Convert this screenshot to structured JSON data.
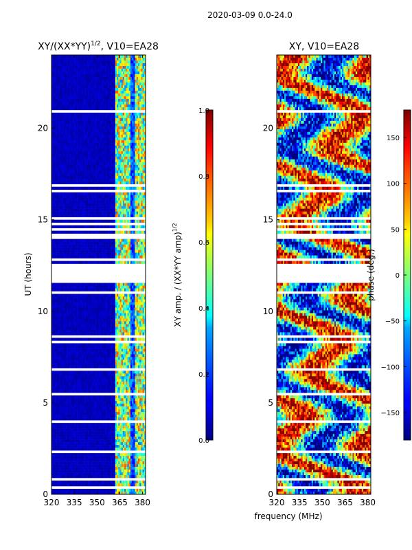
{
  "suptitle": "2020-03-09 0.0-24.0",
  "xlabel": "frequency (MHz)",
  "chart_data": [
    {
      "type": "heatmap",
      "title_main": "XY/(XX*YY)",
      "title_sup": "1/2",
      "title_tail": ", V10=EA28",
      "ylabel": "UT (hours)",
      "x_ticks": [
        "320",
        "335",
        "350",
        "365",
        "380"
      ],
      "x_tick_values": [
        320,
        335,
        350,
        365,
        380
      ],
      "xlim": [
        320,
        382
      ],
      "y_ticks": [
        "0",
        "5",
        "10",
        "15",
        "20"
      ],
      "y_tick_values": [
        0,
        5,
        10,
        15,
        20
      ],
      "ylim": [
        0,
        24
      ],
      "data_gaps_hours": [
        [
          11.5,
          12.6
        ],
        [
          13.9,
          14.3
        ]
      ],
      "colorbar": {
        "label_main": "XY amp. / (XX*YY amp)",
        "label_sup": "1/2",
        "ticks": [
          "0.0",
          "0.2",
          "0.4",
          "0.6",
          "0.8",
          "1.0"
        ],
        "tick_values": [
          0.0,
          0.2,
          0.4,
          0.6,
          0.8,
          1.0
        ],
        "range": [
          0.0,
          1.0
        ],
        "colormap": "jet"
      }
    },
    {
      "type": "heatmap",
      "title": "XY, V10=EA28",
      "x_ticks": [
        "320",
        "335",
        "350",
        "365",
        "380"
      ],
      "x_tick_values": [
        320,
        335,
        350,
        365,
        380
      ],
      "xlim": [
        320,
        382
      ],
      "y_ticks": [
        "0",
        "5",
        "10",
        "15",
        "20"
      ],
      "y_tick_values": [
        0,
        5,
        10,
        15,
        20
      ],
      "ylim": [
        0,
        24
      ],
      "data_gaps_hours": [
        [
          11.5,
          12.6
        ],
        [
          13.9,
          14.3
        ]
      ],
      "colorbar": {
        "label": "phase (deg.)",
        "ticks": [
          "150",
          "100",
          "50",
          "0",
          "−50",
          "−100",
          "−150"
        ],
        "tick_values": [
          150,
          100,
          50,
          0,
          -50,
          -100,
          -150
        ],
        "range": [
          -180,
          180
        ],
        "colormap": "jet"
      }
    }
  ]
}
